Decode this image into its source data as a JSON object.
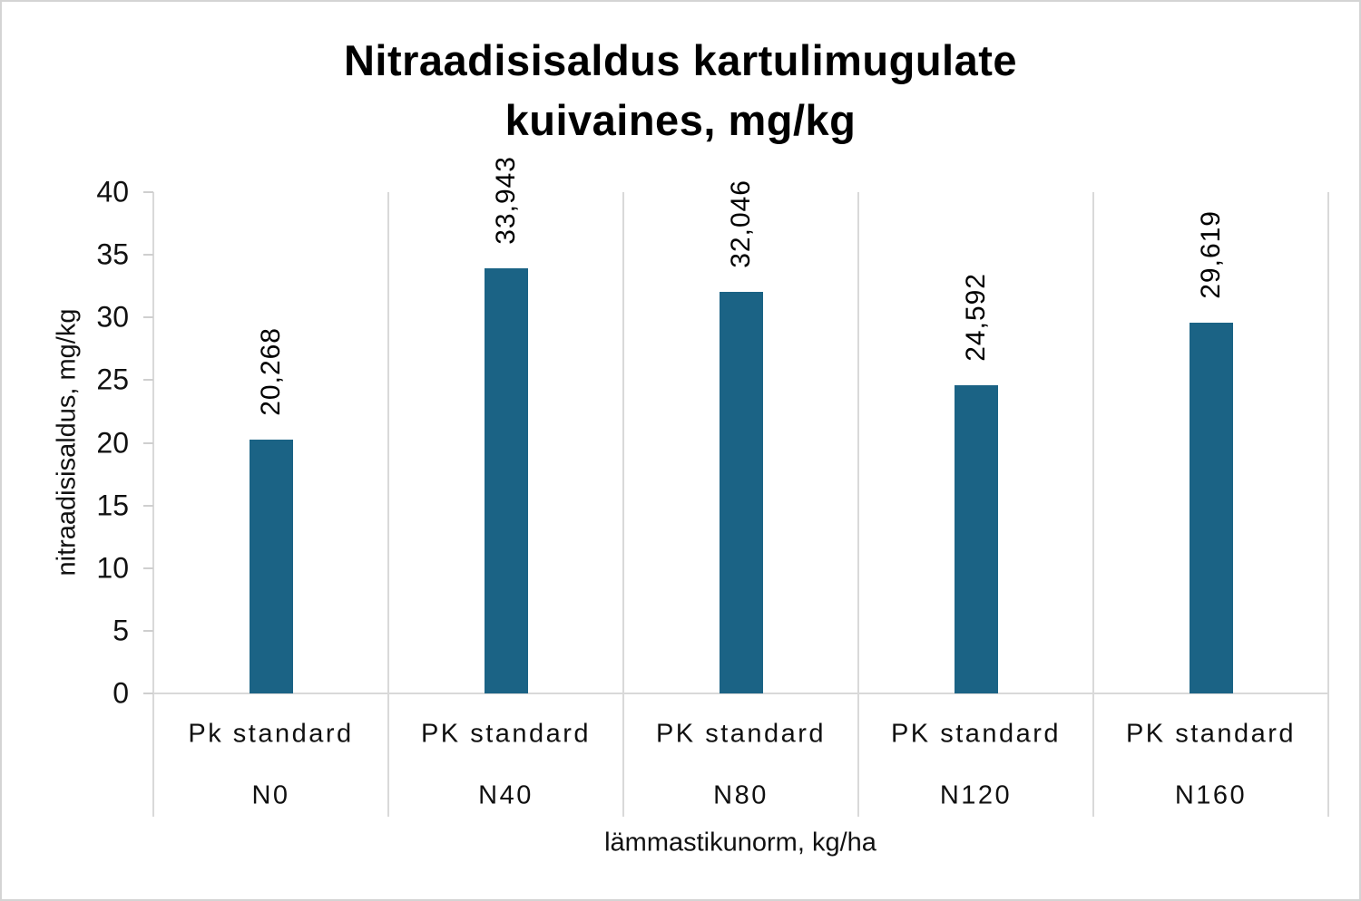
{
  "title": {
    "line1": "Nitraadisisaldus kartulimugulate",
    "line2": "kuivaines, mg/kg"
  },
  "chart_data": {
    "type": "bar",
    "title": "Nitraadisisaldus kartulimugulate kuivaines, mg/kg",
    "xlabel": "lämmastikunorm, kg/ha",
    "ylabel": "nitraadisisaldus, mg/kg",
    "categories": [
      {
        "label": "Pk standard",
        "sublabel": "N0"
      },
      {
        "label": "PK standard",
        "sublabel": "N40"
      },
      {
        "label": "PK standard",
        "sublabel": "N80"
      },
      {
        "label": "PK standard",
        "sublabel": "N120"
      },
      {
        "label": "PK standard",
        "sublabel": "N160"
      }
    ],
    "values": [
      20.268,
      33.943,
      32.046,
      24.592,
      29.619
    ],
    "data_labels": [
      "20,268",
      "33,943",
      "32,046",
      "24,592",
      "29,619"
    ],
    "ylim": [
      0,
      40
    ],
    "yticks": [
      0,
      5,
      10,
      15,
      20,
      25,
      30,
      35,
      40
    ],
    "bar_color": "#1b6385",
    "gridline_color": "#d9d9d9",
    "grid": "vertical category separators only",
    "legend_position": "none",
    "data_label_rotation": -90
  }
}
